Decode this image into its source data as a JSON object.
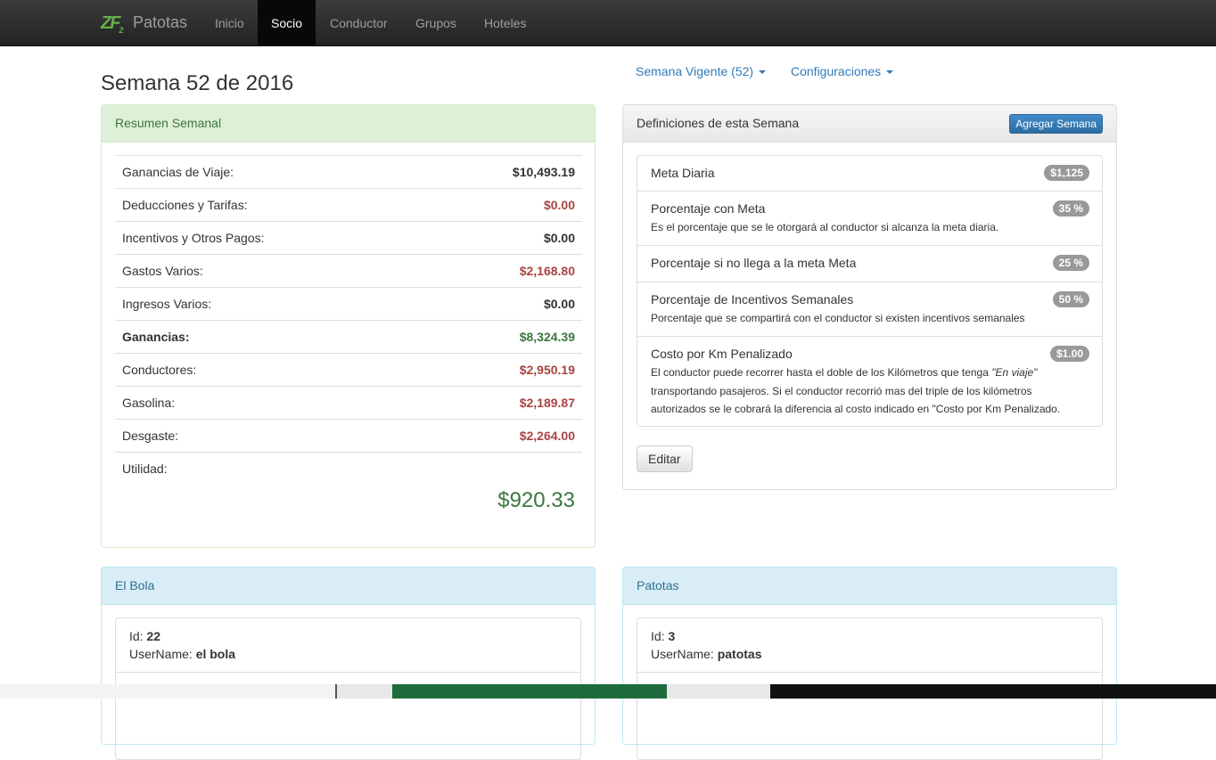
{
  "navbar": {
    "logo": "ZF",
    "logo_sub": "2",
    "brand": "Patotas",
    "items": [
      "Inicio",
      "Socio",
      "Conductor",
      "Grupos",
      "Hoteles"
    ]
  },
  "page": {
    "title": "Semana 52 de 2016",
    "dropdowns": [
      "Semana Vigente (52)",
      "Configuraciones"
    ]
  },
  "summary": {
    "heading": "Resumen Semanal",
    "rows": [
      {
        "label": "Ganancias de Viaje:",
        "value": "$10,493.19",
        "color": "#333333"
      },
      {
        "label": "Deducciones y Tarifas:",
        "value": "$0.00",
        "color": "#a94442"
      },
      {
        "label": "Incentivos y Otros Pagos:",
        "value": "$0.00",
        "color": "#333333"
      },
      {
        "label": "Gastos Varios:",
        "value": "$2,168.80",
        "color": "#a94442"
      },
      {
        "label": "Ingresos Varios:",
        "value": "$0.00",
        "color": "#333333"
      },
      {
        "label": "Ganancias:",
        "value": "$8,324.39",
        "color": "#3c763d"
      },
      {
        "label": "Conductores:",
        "value": "$2,950.19",
        "color": "#a94442"
      },
      {
        "label": "Gasolina:",
        "value": "$2,189.87",
        "color": "#a94442"
      },
      {
        "label": "Desgaste:",
        "value": "$2,264.00",
        "color": "#a94442"
      }
    ],
    "total_label": "Utilidad:",
    "total": "$920.33"
  },
  "definitions": {
    "heading": "Definiciones de esta Semana",
    "button": "Agregar Semana",
    "items": [
      {
        "title": "Meta Diaria",
        "badge": "$1,125"
      },
      {
        "title": "Porcentaje con Meta",
        "badge": "35 %",
        "description": [
          "Es el porcentaje que se le otorgará al conductor si alcanza la meta diaria."
        ]
      },
      {
        "title": "Porcentaje si no llega a la meta Meta",
        "badge": "25 %"
      },
      {
        "title": "Porcentaje de Incentivos Semanales",
        "badge": "50 %",
        "description": [
          "Porcentaje que se compartirá con el conductor si existen incentivos semanales"
        ]
      },
      {
        "title": "Costo por Km Penalizado",
        "badge": "$1.00",
        "description": [
          "El conductor puede recorrer hasta el doble de los Kilómetros que tenga ",
          "\"En viaje\"",
          " transportando pasajeros. Si el conductor recorrió mas del triple de los kilómetros autorizados se le cobrará la diferencia al costo indicado en \"Costo por Km Penalizado."
        ]
      }
    ],
    "edit": "Editar"
  },
  "groups": [
    {
      "heading": "El Bola",
      "id_label": "Id:",
      "id": "22",
      "username_label": "UserName:",
      "username": "el bola"
    },
    {
      "heading": "Patotas",
      "id_label": "Id:",
      "id": "3",
      "username_label": "UserName:",
      "username": "patotas"
    }
  ]
}
